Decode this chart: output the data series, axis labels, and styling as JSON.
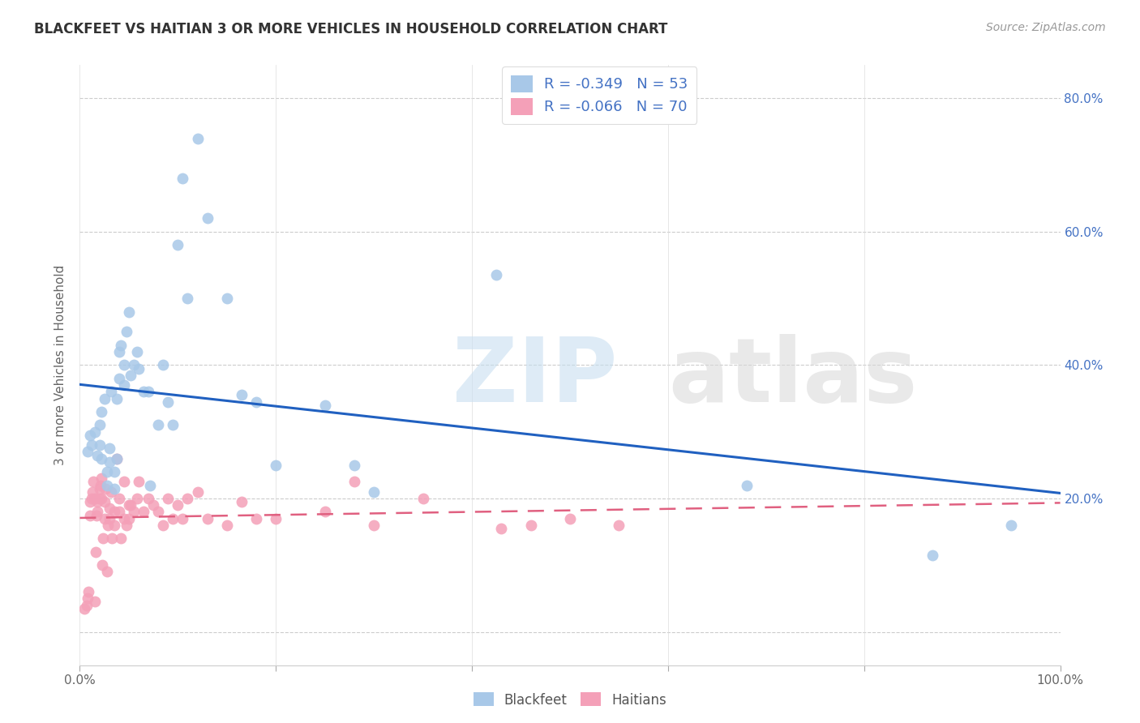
{
  "title": "BLACKFEET VS HAITIAN 3 OR MORE VEHICLES IN HOUSEHOLD CORRELATION CHART",
  "source": "Source: ZipAtlas.com",
  "ylabel": "3 or more Vehicles in Household",
  "xlim": [
    0.0,
    1.0
  ],
  "ylim": [
    -0.05,
    0.85
  ],
  "xtick_positions": [
    0.0,
    0.2,
    0.4,
    0.6,
    0.8,
    1.0
  ],
  "xticklabels": [
    "0.0%",
    "",
    "",
    "",
    "",
    "100.0%"
  ],
  "ytick_positions": [
    0.0,
    0.2,
    0.4,
    0.6,
    0.8
  ],
  "yticklabels_right": [
    "",
    "20.0%",
    "40.0%",
    "60.0%",
    "80.0%"
  ],
  "blackfeet_color": "#a8c8e8",
  "haitian_color": "#f4a0b8",
  "blue_line_color": "#2060c0",
  "pink_line_color": "#e06080",
  "legend_blue_color": "#a8c8e8",
  "legend_pink_color": "#f4a0b8",
  "blackfeet_R": -0.349,
  "blackfeet_N": 53,
  "haitian_R": -0.066,
  "haitian_N": 70,
  "blackfeet_x": [
    0.008,
    0.01,
    0.012,
    0.015,
    0.018,
    0.02,
    0.02,
    0.022,
    0.022,
    0.025,
    0.028,
    0.028,
    0.03,
    0.03,
    0.032,
    0.035,
    0.035,
    0.038,
    0.038,
    0.04,
    0.04,
    0.042,
    0.045,
    0.045,
    0.048,
    0.05,
    0.052,
    0.055,
    0.058,
    0.06,
    0.065,
    0.07,
    0.072,
    0.08,
    0.085,
    0.09,
    0.095,
    0.1,
    0.105,
    0.11,
    0.12,
    0.13,
    0.15,
    0.165,
    0.18,
    0.2,
    0.25,
    0.28,
    0.3,
    0.425,
    0.68,
    0.87,
    0.95
  ],
  "blackfeet_y": [
    0.27,
    0.295,
    0.28,
    0.3,
    0.265,
    0.28,
    0.31,
    0.26,
    0.33,
    0.35,
    0.22,
    0.24,
    0.255,
    0.275,
    0.36,
    0.215,
    0.24,
    0.26,
    0.35,
    0.42,
    0.38,
    0.43,
    0.37,
    0.4,
    0.45,
    0.48,
    0.385,
    0.4,
    0.42,
    0.395,
    0.36,
    0.36,
    0.22,
    0.31,
    0.4,
    0.345,
    0.31,
    0.58,
    0.68,
    0.5,
    0.74,
    0.62,
    0.5,
    0.355,
    0.345,
    0.25,
    0.34,
    0.25,
    0.21,
    0.535,
    0.22,
    0.115,
    0.16
  ],
  "haitian_x": [
    0.005,
    0.007,
    0.008,
    0.009,
    0.01,
    0.01,
    0.012,
    0.013,
    0.014,
    0.015,
    0.015,
    0.016,
    0.017,
    0.018,
    0.018,
    0.02,
    0.02,
    0.021,
    0.022,
    0.022,
    0.023,
    0.024,
    0.025,
    0.025,
    0.026,
    0.028,
    0.029,
    0.03,
    0.03,
    0.032,
    0.033,
    0.035,
    0.035,
    0.038,
    0.04,
    0.04,
    0.042,
    0.045,
    0.045,
    0.048,
    0.05,
    0.05,
    0.052,
    0.055,
    0.058,
    0.06,
    0.065,
    0.07,
    0.075,
    0.08,
    0.085,
    0.09,
    0.095,
    0.1,
    0.105,
    0.11,
    0.12,
    0.13,
    0.15,
    0.165,
    0.18,
    0.2,
    0.25,
    0.28,
    0.3,
    0.35,
    0.43,
    0.46,
    0.5,
    0.55
  ],
  "haitian_y": [
    0.035,
    0.04,
    0.05,
    0.06,
    0.175,
    0.195,
    0.2,
    0.21,
    0.225,
    0.2,
    0.045,
    0.12,
    0.175,
    0.18,
    0.195,
    0.2,
    0.215,
    0.22,
    0.23,
    0.2,
    0.1,
    0.14,
    0.17,
    0.195,
    0.215,
    0.09,
    0.16,
    0.17,
    0.185,
    0.21,
    0.14,
    0.16,
    0.18,
    0.26,
    0.18,
    0.2,
    0.14,
    0.17,
    0.225,
    0.16,
    0.19,
    0.17,
    0.19,
    0.18,
    0.2,
    0.225,
    0.18,
    0.2,
    0.19,
    0.18,
    0.16,
    0.2,
    0.17,
    0.19,
    0.17,
    0.2,
    0.21,
    0.17,
    0.16,
    0.195,
    0.17,
    0.17,
    0.18,
    0.225,
    0.16,
    0.2,
    0.155,
    0.16,
    0.17,
    0.16
  ]
}
